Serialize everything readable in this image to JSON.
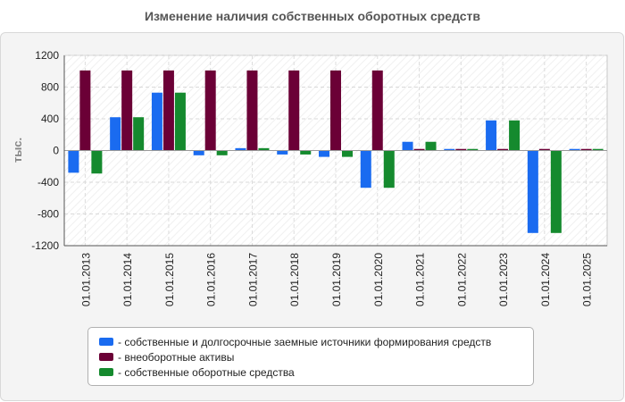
{
  "chart_data": {
    "type": "bar",
    "title": "Изменение наличия собственных оборотных средств",
    "ylabel": "тыс.",
    "xlabel": "",
    "ylim": [
      -1200,
      1200
    ],
    "yticks": [
      1200,
      800,
      400,
      0,
      -400,
      -800,
      -1200
    ],
    "grid": true,
    "legend_position": "bottom",
    "categories": [
      "01.01.2013",
      "01.01.2014",
      "01.01.2015",
      "01.01.2016",
      "01.01.2017",
      "01.01.2018",
      "01.01.2019",
      "01.01.2020",
      "01.01.2021",
      "01.01.2022",
      "01.01.2023",
      "01.01.2024",
      "01.01.2025"
    ],
    "series": [
      {
        "name": "- собственные и долгосрочные заемные источники формирования средств",
        "color": "#1a6bf0",
        "values": [
          -280,
          420,
          730,
          -60,
          30,
          -50,
          -80,
          -470,
          110,
          20,
          380,
          -1040,
          20
        ]
      },
      {
        "name": "- внеоборотные активы",
        "color": "#6b0036",
        "values": [
          1010,
          1010,
          1010,
          1010,
          1010,
          1010,
          1010,
          1010,
          20,
          20,
          20,
          20,
          20
        ]
      },
      {
        "name": "- собственные оборотные средства",
        "color": "#158a2e",
        "values": [
          -290,
          420,
          730,
          -60,
          30,
          -50,
          -80,
          -470,
          110,
          20,
          380,
          -1040,
          20
        ]
      }
    ]
  }
}
